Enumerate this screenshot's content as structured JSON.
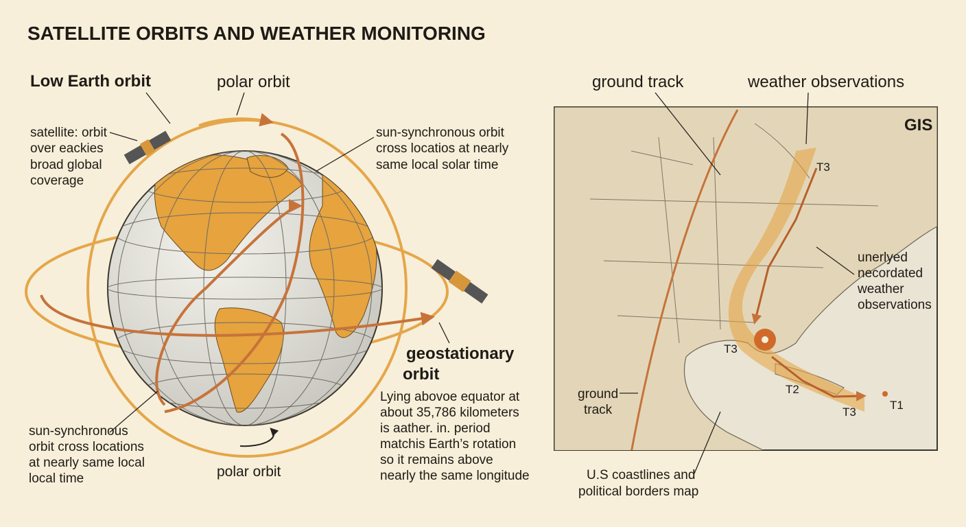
{
  "title": "SATELLITE ORBITS AND WEATHER MONITORING",
  "left_panel": {
    "heading": "Low Earth orbit",
    "polar_orbit_top": "polar orbit",
    "satellite_note": [
      "satellite: orbit",
      "over eackies",
      "broad global",
      "coverage"
    ],
    "sun_sync_top": [
      "sun-synchronous orbit",
      "cross locatios at nearly",
      "same local solar time"
    ],
    "geostationary_heading": [
      "geostationary",
      "orbit"
    ],
    "geostationary_note": [
      "Lying abovoe equator at",
      "about 35,786 kilometers",
      "is aather. in. period",
      "matchis Earth’s rotation",
      "so it remains above",
      "nearly the same longitude"
    ],
    "sun_sync_bottom": [
      "sun-synchronous",
      "orbit cross locations",
      "at nearly same local",
      "local time"
    ],
    "polar_orbit_bottom": "polar orbit"
  },
  "right_panel": {
    "ground_track_top": "ground track",
    "weather_observations": "weather observations",
    "map_badge": "GIS",
    "observations_note": [
      "unerlyed",
      "necordated",
      "weather",
      "observations"
    ],
    "ground_track_side": [
      "ground",
      "track"
    ],
    "map_caption": [
      "U.S coastlines and",
      "political borders map"
    ],
    "track_points": [
      "T3",
      "T3",
      "T2",
      "T3",
      "T1"
    ]
  }
}
